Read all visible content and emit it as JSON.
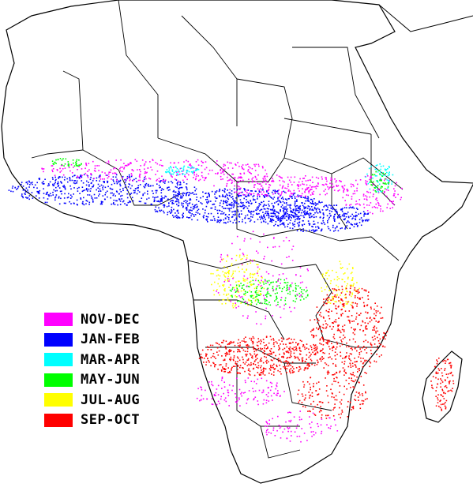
{
  "map": {
    "region": "Africa",
    "legend": [
      {
        "label": "NOV-DEC",
        "color": "#ff00ff"
      },
      {
        "label": "JAN-FEB",
        "color": "#0000ff"
      },
      {
        "label": "MAR-APR",
        "color": "#00ffff"
      },
      {
        "label": "MAY-JUN",
        "color": "#00ff00"
      },
      {
        "label": "JUL-AUG",
        "color": "#ffff00"
      },
      {
        "label": "SEP-OCT",
        "color": "#ff0000"
      }
    ],
    "colors": {
      "background": "#ffffff",
      "borders": "#000000"
    }
  }
}
